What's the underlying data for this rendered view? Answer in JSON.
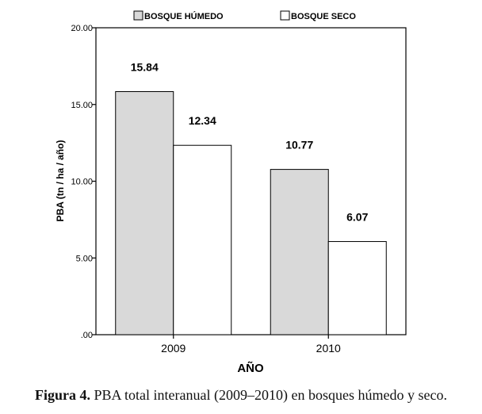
{
  "chart_data": {
    "type": "bar",
    "categories": [
      "2009",
      "2010"
    ],
    "series": [
      {
        "name": "BOSQUE HÚMEDO",
        "values": [
          15.84,
          10.77
        ],
        "data_labels": [
          "15.84",
          "10.77"
        ],
        "color": "#d9d9d9"
      },
      {
        "name": "BOSQUE SECO",
        "values": [
          12.34,
          6.07
        ],
        "data_labels": [
          "12.34",
          "6.07"
        ],
        "color": "#ffffff"
      }
    ],
    "xlabel": "AÑO",
    "ylabel": "PBA (tn / ha / año)",
    "ylim": [
      0,
      20
    ],
    "yticks": [
      0,
      5,
      10,
      15,
      20
    ],
    "ytick_labels": [
      ".00",
      "5.00",
      "10.00",
      "15.00",
      "20.00"
    ],
    "legend_position": "top",
    "grid": false
  },
  "caption": {
    "label": "Figura 4.",
    "text": "PBA total interanual (2009–2010) en bosques húmedo y seco."
  }
}
